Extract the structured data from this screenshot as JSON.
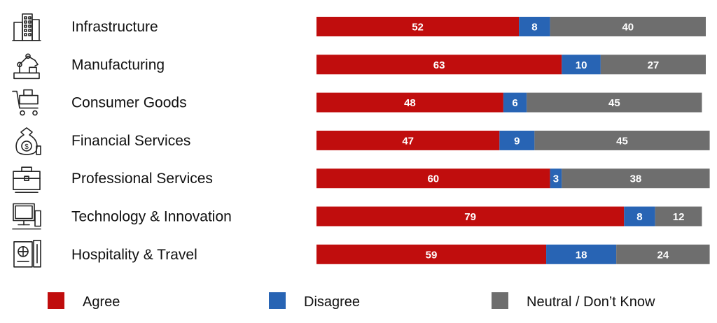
{
  "chart_data": {
    "type": "bar",
    "stacked": true,
    "orientation": "horizontal",
    "categories": [
      "Infrastructure",
      "Manufacturing",
      "Consumer Goods",
      "Financial Services",
      "Professional Services",
      "Technology & Innovation",
      "Hospitality & Travel"
    ],
    "category_icons": [
      "buildings-icon",
      "robot-arm-icon",
      "shopping-cart-icon",
      "money-bag-icon",
      "briefcase-icon",
      "computer-icon",
      "passport-icon"
    ],
    "series": [
      {
        "name": "Agree",
        "color": "#c00d0d",
        "values": [
          52,
          63,
          48,
          47,
          60,
          79,
          59
        ]
      },
      {
        "name": "Disagree",
        "color": "#2864b4",
        "values": [
          8,
          10,
          6,
          9,
          3,
          8,
          18
        ]
      },
      {
        "name": "Neutral / Don’t Know",
        "color": "#6e6e6e",
        "values": [
          40,
          27,
          45,
          45,
          38,
          12,
          24
        ]
      }
    ],
    "xlim": [
      0,
      100
    ],
    "grid": false,
    "legend_position": "bottom"
  }
}
